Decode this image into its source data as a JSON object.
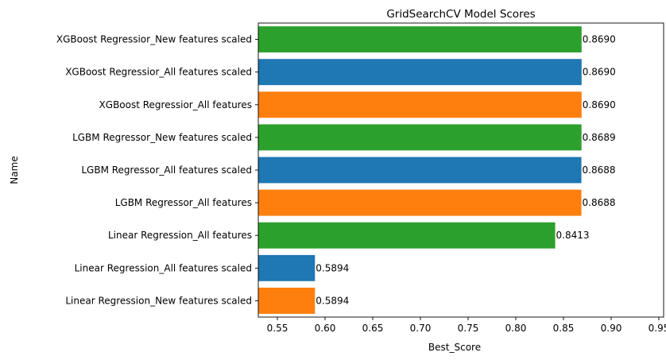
{
  "chart_data": {
    "type": "bar",
    "orientation": "horizontal",
    "title": "GridSearchCV Model Scores",
    "xlabel": "Best_Score",
    "ylabel": "Name",
    "xlim": [
      0.53,
      0.955
    ],
    "xticks": [
      0.55,
      0.6,
      0.65,
      0.7,
      0.75,
      0.8,
      0.85,
      0.9,
      0.95
    ],
    "xtick_labels": [
      "0.55",
      "0.60",
      "0.65",
      "0.70",
      "0.75",
      "0.80",
      "0.85",
      "0.90",
      "0.95"
    ],
    "grid": false,
    "bars": [
      {
        "category": "XGBoost Regressior_New features scaled",
        "value": 0.869,
        "label": "0.8690",
        "color": "#2ca02c"
      },
      {
        "category": "XGBoost Regressior_All features scaled",
        "value": 0.869,
        "label": "0.8690",
        "color": "#1f77b4"
      },
      {
        "category": "XGBoost Regressior_All features",
        "value": 0.869,
        "label": "0.8690",
        "color": "#ff7f0e"
      },
      {
        "category": "LGBM Regressor_New features scaled",
        "value": 0.8689,
        "label": "0.8689",
        "color": "#2ca02c"
      },
      {
        "category": "LGBM Regressor_All features scaled",
        "value": 0.8688,
        "label": "0.8688",
        "color": "#1f77b4"
      },
      {
        "category": "LGBM Regressor_All features",
        "value": 0.8688,
        "label": "0.8688",
        "color": "#ff7f0e"
      },
      {
        "category": "Linear Regression_All features",
        "value": 0.8413,
        "label": "0.8413",
        "color": "#2ca02c"
      },
      {
        "category": "Linear Regression_All features scaled",
        "value": 0.5894,
        "label": "0.5894",
        "color": "#1f77b4"
      },
      {
        "category": "Linear Regression_New features scaled",
        "value": 0.5894,
        "label": "0.5894",
        "color": "#ff7f0e"
      }
    ]
  }
}
